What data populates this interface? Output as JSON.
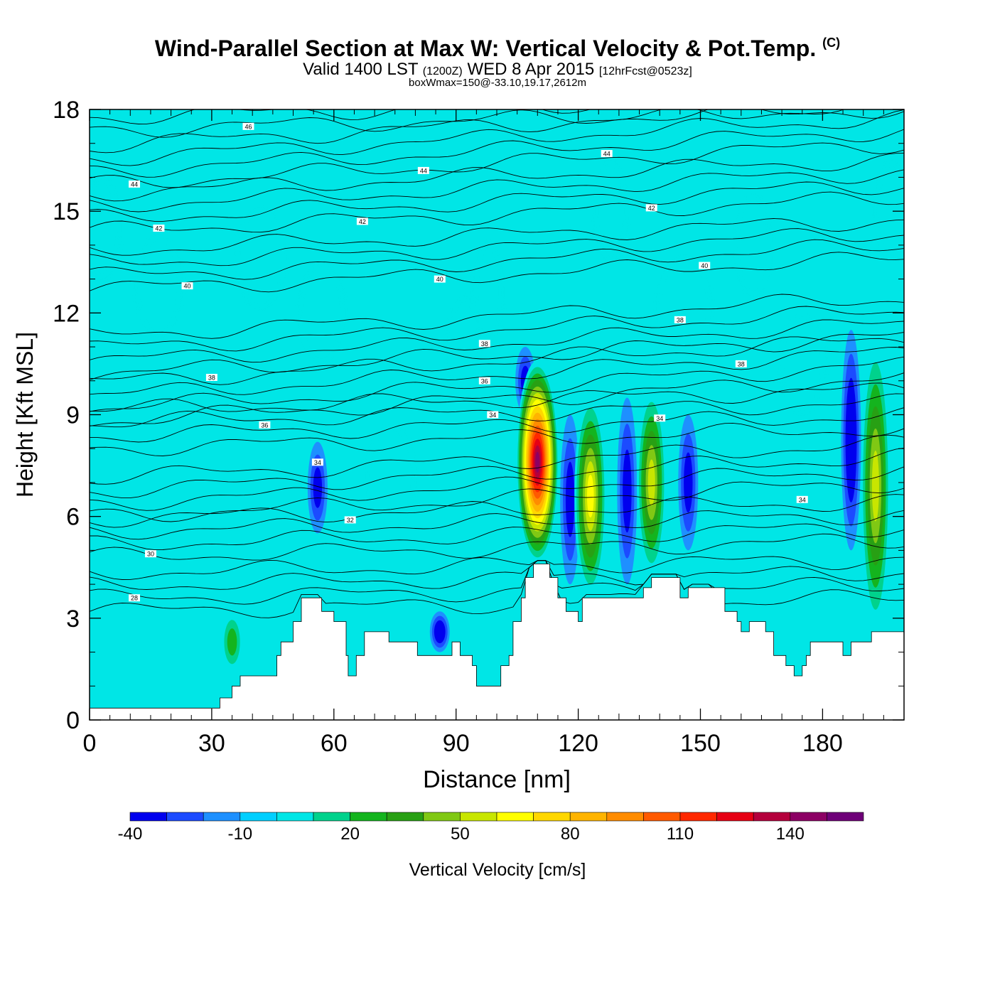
{
  "title": {
    "main": "Wind-Parallel Section at Max W: Vertical Velocity & Pot.Temp.",
    "copyright": "(C)",
    "valid_prefix": "Valid 1400 LST",
    "valid_z": "(1200Z)",
    "valid_date": "WED 8 Apr 2015",
    "valid_fcst": "[12hrFcst@0523z]",
    "box": "boxWmax=150@-33.10,19.17,2612m"
  },
  "chart_data": {
    "type": "heatmap",
    "xlabel": "Distance [nm]",
    "ylabel": "Height [Kft MSL]",
    "xlim": [
      0,
      200
    ],
    "ylim": [
      0,
      18
    ],
    "x_ticks": [
      0,
      30,
      60,
      90,
      120,
      150,
      180
    ],
    "y_ticks": [
      0,
      3,
      6,
      9,
      12,
      15,
      18
    ],
    "colorbar": {
      "label": "Vertical Velocity [cm/s]",
      "levels": [
        -40,
        -30,
        -20,
        -10,
        0,
        10,
        20,
        30,
        40,
        50,
        60,
        70,
        80,
        90,
        100,
        110,
        120,
        130,
        140,
        150,
        160
      ],
      "tick_labels": [
        "-40",
        "-10",
        "20",
        "50",
        "80",
        "110",
        "140"
      ],
      "tick_values": [
        -40,
        -10,
        20,
        50,
        80,
        110,
        140
      ],
      "colors": [
        "#0000ee",
        "#1c4bff",
        "#1e90ff",
        "#00cfff",
        "#00e6e6",
        "#00d28c",
        "#14b41e",
        "#28a014",
        "#80c814",
        "#c8e600",
        "#ffff00",
        "#ffd700",
        "#ffb400",
        "#ff8c00",
        "#ff5a00",
        "#ff2800",
        "#e60014",
        "#b4003c",
        "#8c0064",
        "#6e0078"
      ]
    },
    "background_w": 0,
    "updraft_cores": [
      {
        "x": 110,
        "y_low": 4.6,
        "y_high": 10.6,
        "w_max": 150
      },
      {
        "x": 123,
        "y_low": 3.6,
        "y_high": 9.6,
        "w_max": 70
      },
      {
        "x": 138,
        "y_low": 4.2,
        "y_high": 9.8,
        "w_max": 60
      },
      {
        "x": 193,
        "y_low": 2.6,
        "y_high": 11.2,
        "w_max": 60
      },
      {
        "x": 35,
        "y_low": 1.4,
        "y_high": 3.2,
        "w_max": 30
      },
      {
        "x": 70,
        "y_low": 2.6,
        "y_high": 7.6,
        "w_max": 15
      }
    ],
    "downdraft_cores": [
      {
        "x": 56,
        "y_low": 5.5,
        "y_high": 8.2,
        "w_min": -30
      },
      {
        "x": 86,
        "y_low": 2.0,
        "y_high": 3.2,
        "w_min": -40
      },
      {
        "x": 118,
        "y_low": 4.0,
        "y_high": 9.0,
        "w_min": -30
      },
      {
        "x": 132,
        "y_low": 4.0,
        "y_high": 9.5,
        "w_min": -30
      },
      {
        "x": 147,
        "y_low": 5.0,
        "y_high": 9.0,
        "w_min": -30
      },
      {
        "x": 187,
        "y_low": 5.0,
        "y_high": 11.5,
        "w_min": -40
      },
      {
        "x": 107,
        "y_low": 9.0,
        "y_high": 11.0,
        "w_min": -30
      }
    ],
    "terrain_height_kft": [
      [
        0,
        0.35
      ],
      [
        30,
        0.35
      ],
      [
        32,
        0.65
      ],
      [
        35,
        1.0
      ],
      [
        37,
        1.3
      ],
      [
        45,
        1.3
      ],
      [
        46,
        1.9
      ],
      [
        47,
        2.3
      ],
      [
        50,
        2.9
      ],
      [
        52,
        3.6
      ],
      [
        56,
        3.6
      ],
      [
        57,
        3.2
      ],
      [
        60,
        2.9
      ],
      [
        63,
        1.9
      ],
      [
        63.5,
        1.3
      ],
      [
        65,
        1.3
      ],
      [
        65.5,
        1.9
      ],
      [
        67,
        1.9
      ],
      [
        67.5,
        2.6
      ],
      [
        73,
        2.6
      ],
      [
        73.5,
        2.3
      ],
      [
        80,
        2.3
      ],
      [
        80.5,
        1.9
      ],
      [
        87,
        1.9
      ],
      [
        89,
        2.3
      ],
      [
        91,
        1.9
      ],
      [
        94,
        1.6
      ],
      [
        95,
        1.0
      ],
      [
        99,
        1.0
      ],
      [
        101,
        1.6
      ],
      [
        103,
        1.9
      ],
      [
        104,
        2.9
      ],
      [
        106,
        3.6
      ],
      [
        107,
        4.2
      ],
      [
        109,
        4.6
      ],
      [
        112,
        4.6
      ],
      [
        113,
        4.2
      ],
      [
        115,
        3.6
      ],
      [
        117,
        3.2
      ],
      [
        120,
        2.9
      ],
      [
        121,
        3.6
      ],
      [
        135,
        3.6
      ],
      [
        136,
        3.9
      ],
      [
        138,
        4.2
      ],
      [
        144,
        4.2
      ],
      [
        145,
        3.6
      ],
      [
        147,
        3.9
      ],
      [
        153,
        3.9
      ],
      [
        156,
        3.2
      ],
      [
        159,
        2.9
      ],
      [
        160,
        2.6
      ],
      [
        162,
        2.9
      ],
      [
        165,
        2.9
      ],
      [
        166,
        2.6
      ],
      [
        168,
        1.9
      ],
      [
        171,
        1.6
      ],
      [
        173,
        1.3
      ],
      [
        175,
        1.6
      ],
      [
        176,
        1.9
      ],
      [
        177,
        2.3
      ],
      [
        184,
        2.3
      ],
      [
        185,
        1.9
      ],
      [
        187,
        2.3
      ],
      [
        191,
        2.3
      ],
      [
        192,
        2.6
      ],
      [
        200,
        2.6
      ]
    ],
    "theta_contours": [
      {
        "label": "28",
        "y0": 3.2,
        "y1": 3.6
      },
      {
        "label": "30",
        "y0": 4.8,
        "y1": 5.3
      },
      {
        "label": "32",
        "y0": 6.0,
        "y1": 7.0
      },
      {
        "label": "34",
        "y0": 8.0,
        "y1": 8.6
      },
      {
        "label": "36",
        "y0": 8.8,
        "y1": 10.1
      },
      {
        "label": "38",
        "y0": 10.2,
        "y1": 11.3
      },
      {
        "label": "40",
        "y0": 12.7,
        "y1": 13.6
      },
      {
        "label": "42",
        "y0": 14.4,
        "y1": 15.4
      },
      {
        "label": "44",
        "y0": 15.8,
        "y1": 17.0
      },
      {
        "label": "46",
        "y0": 17.4,
        "y1": 18.0
      }
    ],
    "theta_labels": [
      {
        "text": "46",
        "x": 39,
        "y": 17.5
      },
      {
        "text": "44",
        "x": 11,
        "y": 15.8
      },
      {
        "text": "44",
        "x": 82,
        "y": 16.2
      },
      {
        "text": "44",
        "x": 127,
        "y": 16.7
      },
      {
        "text": "42",
        "x": 17,
        "y": 14.5
      },
      {
        "text": "42",
        "x": 67,
        "y": 14.7
      },
      {
        "text": "42",
        "x": 138,
        "y": 15.1
      },
      {
        "text": "40",
        "x": 24,
        "y": 12.8
      },
      {
        "text": "40",
        "x": 86,
        "y": 13.0
      },
      {
        "text": "40",
        "x": 151,
        "y": 13.4
      },
      {
        "text": "38",
        "x": 97,
        "y": 11.1
      },
      {
        "text": "38",
        "x": 145,
        "y": 11.8
      },
      {
        "text": "38",
        "x": 30,
        "y": 10.1
      },
      {
        "text": "38",
        "x": 160,
        "y": 10.5
      },
      {
        "text": "36",
        "x": 97,
        "y": 10.0
      },
      {
        "text": "36",
        "x": 43,
        "y": 8.7
      },
      {
        "text": "34",
        "x": 99,
        "y": 9.0
      },
      {
        "text": "34",
        "x": 140,
        "y": 8.9
      },
      {
        "text": "34",
        "x": 56,
        "y": 7.6
      },
      {
        "text": "34",
        "x": 175,
        "y": 6.5
      },
      {
        "text": "32",
        "x": 64,
        "y": 5.9
      },
      {
        "text": "30",
        "x": 15,
        "y": 4.9
      },
      {
        "text": "28",
        "x": 11,
        "y": 3.6
      }
    ]
  }
}
